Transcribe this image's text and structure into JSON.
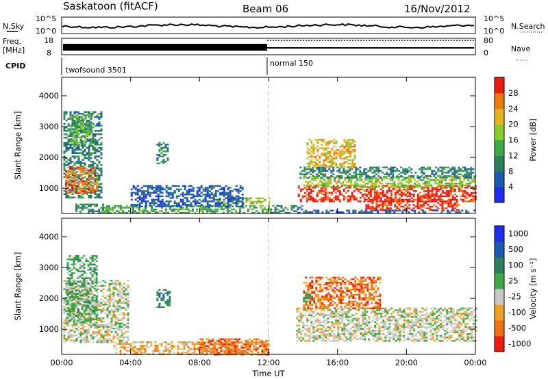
{
  "header": {
    "station": "Saskatoon (fitACF)",
    "beam": "Beam 06",
    "date": "16/Nov/2012"
  },
  "strip": {
    "nsky_label": "N.Sky",
    "nsearch_label": "N.Search",
    "nsky_ticks": [
      "10^5",
      "10^0"
    ],
    "nsearch_ticks": [
      "10^5",
      "10^0"
    ],
    "freq_label_1": "Freq.",
    "freq_label_2": "[MHz]",
    "freq_ticks": [
      "18",
      "8"
    ],
    "nave_label": "Nave",
    "nave_ticks": [
      "80",
      "0"
    ],
    "cpid_label": "CPID",
    "cpid_modes": [
      {
        "name": "twofsound 3501",
        "start_hour": 0,
        "end_hour": 12
      },
      {
        "name": "normal 150",
        "start_hour": 12,
        "end_hour": 24
      }
    ]
  },
  "colors": {
    "power": [
      "#1e2cf0",
      "#1a5ab0",
      "#2e7d5e",
      "#3aa845",
      "#8ccc2a",
      "#e8b320",
      "#f07a10",
      "#ef1a10"
    ],
    "velocity": [
      "#1e2cf0",
      "#1a5ab0",
      "#2e7d5e",
      "#3aa845",
      "#c8c8c4",
      "#f0a020",
      "#f07010",
      "#ef1a10"
    ]
  },
  "chart_data": [
    {
      "type": "heatmap",
      "title": "Power",
      "xlabel": "",
      "ylabel": "Slant Range [km]",
      "x_ticks": [
        "00:00",
        "04:00",
        "08:00",
        "12:00",
        "16:00",
        "20:00",
        "00:00"
      ],
      "y_ticks": [
        "1000",
        "2000",
        "3000",
        "4000"
      ],
      "xlim_hours": [
        0,
        24
      ],
      "ylim_km": [
        180,
        4600
      ],
      "colorbar_label": "Power [dB]",
      "colorbar_ticks": [
        "4",
        "8",
        "12",
        "16",
        "20",
        "24",
        "28"
      ],
      "colorbar_range": [
        0,
        32
      ],
      "regions": [
        {
          "x": [
            0.1,
            2.3
          ],
          "y": [
            700,
            3500
          ],
          "level": 2
        },
        {
          "x": [
            0.2,
            2.0
          ],
          "y": [
            850,
            1700
          ],
          "level": 6
        },
        {
          "x": [
            0.5,
            1.8
          ],
          "y": [
            2400,
            3400
          ],
          "level": 3
        },
        {
          "x": [
            0.8,
            2.8
          ],
          "y": [
            200,
            500
          ],
          "level": 2
        },
        {
          "x": [
            2.3,
            12.1
          ],
          "y": [
            200,
            450
          ],
          "level": 3
        },
        {
          "x": [
            9.0,
            12.0
          ],
          "y": [
            500,
            700
          ],
          "level": 4
        },
        {
          "x": [
            4.0,
            10.5
          ],
          "y": [
            400,
            1100
          ],
          "level": 1
        },
        {
          "x": [
            5.5,
            6.2
          ],
          "y": [
            1800,
            2500
          ],
          "level": 2
        },
        {
          "x": [
            13.7,
            24.0
          ],
          "y": [
            600,
            1100
          ],
          "level": 7
        },
        {
          "x": [
            14.0,
            24.0
          ],
          "y": [
            1050,
            1400
          ],
          "level": 4
        },
        {
          "x": [
            13.8,
            24.0
          ],
          "y": [
            1350,
            1700
          ],
          "level": 2
        },
        {
          "x": [
            14.2,
            17.0
          ],
          "y": [
            1700,
            2600
          ],
          "level": 5
        },
        {
          "x": [
            17.5,
            23.0
          ],
          "y": [
            300,
            650
          ],
          "level": 7
        },
        {
          "x": [
            12.1,
            14.0
          ],
          "y": [
            200,
            450
          ],
          "level": 2
        },
        {
          "x": [
            14.0,
            24.0
          ],
          "y": [
            200,
            300
          ],
          "level": 1
        }
      ]
    },
    {
      "type": "heatmap",
      "title": "Velocity",
      "xlabel": "Time UT",
      "ylabel": "Slant Range [km]",
      "x_ticks": [
        "00:00",
        "04:00",
        "08:00",
        "12:00",
        "16:00",
        "20:00",
        "00:00"
      ],
      "y_ticks": [
        "1000",
        "2000",
        "3000",
        "4000"
      ],
      "xlim_hours": [
        0,
        24
      ],
      "ylim_km": [
        180,
        4600
      ],
      "colorbar_label": "Velocity [m s⁻¹]",
      "colorbar_ticks": [
        "1000",
        "500",
        "100",
        "25",
        "-25",
        "-100",
        "-500",
        "-1000"
      ],
      "regions": [
        {
          "x": [
            0.1,
            3.8
          ],
          "y": [
            600,
            2600
          ],
          "level": 4
        },
        {
          "x": [
            0.3,
            2.0
          ],
          "y": [
            1200,
            3400
          ],
          "level": 3
        },
        {
          "x": [
            3.0,
            12.0
          ],
          "y": [
            200,
            600
          ],
          "level": 5
        },
        {
          "x": [
            8.0,
            12.0
          ],
          "y": [
            200,
            700
          ],
          "level": 6
        },
        {
          "x": [
            13.6,
            24.0
          ],
          "y": [
            600,
            1700
          ],
          "level": 4
        },
        {
          "x": [
            14.0,
            18.5
          ],
          "y": [
            1700,
            2700
          ],
          "level": 6
        },
        {
          "x": [
            5.5,
            6.3
          ],
          "y": [
            1700,
            2300
          ],
          "level": 2
        },
        {
          "x": [
            14.0,
            14.5
          ],
          "y": [
            1900,
            2200
          ],
          "level": 3
        }
      ]
    }
  ]
}
